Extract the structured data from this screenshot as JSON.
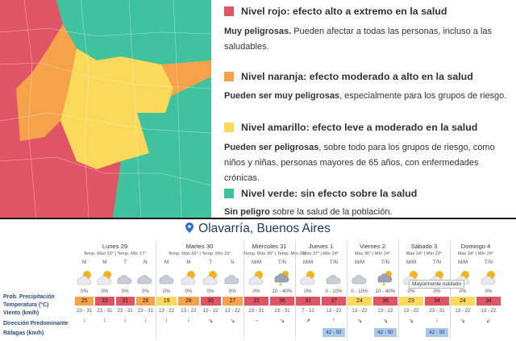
{
  "colors": {
    "rojo": "#e05565",
    "naranja": "#f5a24a",
    "amarillo": "#fbd95a",
    "verde": "#3fc29d",
    "city_text": "#1c3c6e",
    "row_label": "#2b4a7a",
    "gust_cell": "#a9c8ec"
  },
  "legend": {
    "rojo": {
      "title": "Nivel rojo: efecto alto a extremo en la salud",
      "strong": "Muy peligrosas.",
      "rest": " Pueden afectar a todas las personas, incluso a las saludables."
    },
    "naranja": {
      "title": "Nivel naranja: efecto moderado a alto en la salud",
      "strong": "Pueden ser muy peligrosas",
      "rest": ", especialmente para los grupos de riesgo."
    },
    "amarillo": {
      "title": "Nivel amarillo: efecto leve a moderado en la salud",
      "strong": "Pueden ser peligrosas",
      "rest": ", sobre todo para los grupos de riesgo, como niños y niñas, personas mayores de 65 años, con enfermedades crónicas."
    },
    "verde": {
      "title": "Nivel verde: sin efecto sobre la salud",
      "strong": "Sin peligro",
      "rest": " sobre la salud de la población."
    }
  },
  "forecast": {
    "city": "Olavarría, Buenos Aires",
    "pin_icon": "location-pin-icon",
    "row_labels": [
      "Prob. Precipitación",
      "Temperatura (°C)",
      "Viento (km/h)",
      "Dirección Predominante",
      "Ráfagas (km/h)"
    ],
    "tooltip": "Mayormente nublado",
    "temp_colors": {
      "19": "#fbd95a",
      "23": "#fbd95a",
      "24": "#fbd95a",
      "25": "#f5a24a",
      "26": "#f5a24a",
      "27": "#f5a24a",
      "28": "#f5a24a",
      "31": "#e05565",
      "33": "#e05565",
      "34": "#e05565",
      "36": "#e05565",
      "37": "#e05565"
    },
    "days": [
      {
        "name": "Lunes 29",
        "tmax": "Temp. Máx 33°",
        "tmin": "Temp. Mín 17°",
        "periods": [
          {
            "label": "M",
            "icon": "sun-cloud-icon",
            "prob": "0%",
            "temp": "25",
            "wind": "23 - 31",
            "dir": "↓",
            "gust": ""
          },
          {
            "label": "M",
            "icon": "sun-cloud-icon",
            "prob": "0%",
            "temp": "33",
            "wind": "23 - 31",
            "dir": "↓",
            "gust": ""
          },
          {
            "label": "T",
            "icon": "cloud-icon",
            "prob": "0%",
            "temp": "31",
            "wind": "23 - 31",
            "dir": "↓",
            "gust": ""
          },
          {
            "label": "N",
            "icon": "cloud-icon",
            "prob": "0%",
            "temp": "26",
            "wind": "23 - 31",
            "dir": "↓",
            "gust": ""
          }
        ]
      },
      {
        "name": "Martes 30",
        "tmax": "Temp. Máx 36°",
        "tmin": "Temp. Mín 19°",
        "periods": [
          {
            "label": "M",
            "icon": "cloud-icon",
            "prob": "0%",
            "temp": "19",
            "wind": "13 - 22",
            "dir": "↓",
            "gust": ""
          },
          {
            "label": "M",
            "icon": "sun-cloud-icon",
            "prob": "0%",
            "temp": "28",
            "wind": "13 - 22",
            "dir": "↓",
            "gust": ""
          },
          {
            "label": "T",
            "icon": "sun-cloud-icon",
            "prob": "0%",
            "temp": "36",
            "wind": "13 - 22",
            "dir": "↘",
            "gust": ""
          },
          {
            "label": "N",
            "icon": "cloud-icon",
            "prob": "0%",
            "temp": "27",
            "wind": "13 - 22",
            "dir": "↘",
            "gust": ""
          }
        ]
      },
      {
        "name": "Miércoles 31",
        "tmax": "Temp. Máx 36°",
        "tmin": "Temp. Mín 30°",
        "periods": [
          {
            "label": "M/M",
            "icon": "sun-cloud-icon",
            "prob": "0%",
            "temp": "31",
            "wind": "23 - 31",
            "dir": "→",
            "gust": ""
          },
          {
            "label": "T/N",
            "icon": "storm-icon",
            "prob": "10 - 40%",
            "temp": "36",
            "wind": "23 - 31",
            "dir": "↘",
            "gust": ""
          }
        ]
      },
      {
        "name": "Jueves 1",
        "tmax": "Máx 37°",
        "tmin": "Mín 24°",
        "periods": [
          {
            "label": "M/M",
            "icon": "sun-cloud-icon",
            "prob": "0%",
            "temp": "31",
            "wind": "7 - 12",
            "dir": "↗",
            "gust": ""
          },
          {
            "label": "T/N",
            "icon": "cloud-icon",
            "prob": "0 - 10%",
            "temp": "37",
            "wind": "13 - 22",
            "dir": "↑",
            "gust": "42 - 50"
          }
        ]
      },
      {
        "name": "Viernes 2",
        "tmax": "Máx 36°",
        "tmin": "Mín 24°",
        "periods": [
          {
            "label": "M/M",
            "icon": "cloud-icon",
            "prob": "0 - 10%",
            "temp": "24",
            "wind": "13 - 22",
            "dir": "↘",
            "gust": ""
          },
          {
            "label": "T/N",
            "icon": "storm-icon",
            "prob": "10 - 40%",
            "temp": "36",
            "wind": "13 - 22",
            "dir": "↘",
            "gust": "42 - 50"
          }
        ]
      },
      {
        "name": "Sábado 3",
        "tmax": "Máx 34°",
        "tmin": "Mín 23°",
        "periods": [
          {
            "label": "M/M",
            "icon": "sun-cloud-icon",
            "prob": "0%",
            "temp": "23",
            "wind": "13 - 22",
            "dir": "↘",
            "gust": ""
          },
          {
            "label": "T/N",
            "icon": "sun-cloud-icon",
            "prob": "0%",
            "temp": "34",
            "wind": "23 - 31",
            "dir": "↓",
            "gust": "42 - 50"
          }
        ]
      },
      {
        "name": "Domingo 4",
        "tmax": "Máx 34°",
        "tmin": "Mín 24°",
        "periods": [
          {
            "label": "M/M",
            "icon": "sun-cloud-icon",
            "prob": "0%",
            "temp": "24",
            "wind": "13 - 22",
            "dir": "↘",
            "gust": ""
          },
          {
            "label": "T/N",
            "icon": "sun-cloud-icon",
            "prob": "0%",
            "temp": "34",
            "wind": "13 - 22",
            "dir": "↙",
            "gust": ""
          }
        ]
      }
    ]
  }
}
